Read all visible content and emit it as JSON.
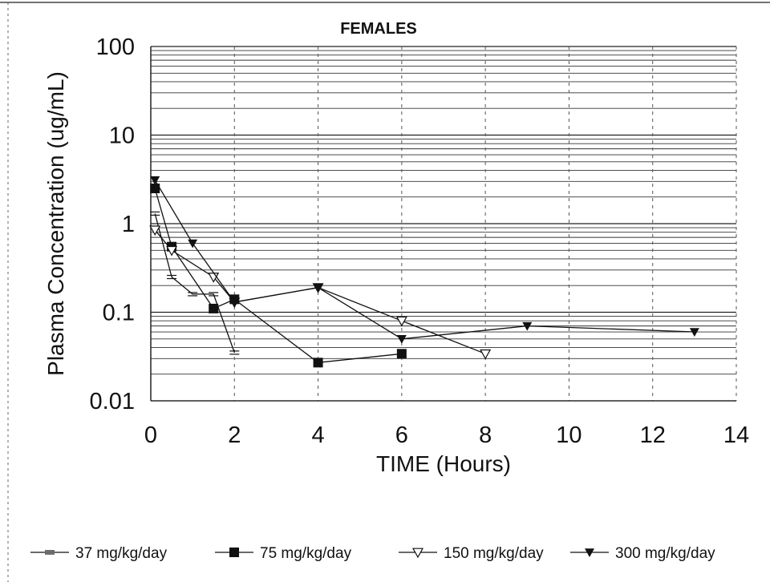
{
  "chart_data": {
    "type": "line",
    "title": "FEMALES",
    "xlabel": "TIME (Hours)",
    "ylabel": "Plasma Concentration (ug/mL)",
    "xlim": [
      0,
      14
    ],
    "ylim": [
      0.01,
      100
    ],
    "yscale": "log",
    "grid": true,
    "legend_position": "bottom",
    "x_ticks": [
      "0",
      "2",
      "4",
      "6",
      "8",
      "10",
      "12",
      "14"
    ],
    "y_ticks": [
      "0.01",
      "0.1",
      "1",
      "10",
      "100"
    ],
    "series": [
      {
        "name": "37 mg/kg/day",
        "marker": "minus",
        "points": [
          [
            0.1,
            1.3
          ],
          [
            0.5,
            0.25
          ],
          [
            1.0,
            0.16
          ],
          [
            1.5,
            0.16
          ],
          [
            2.0,
            0.035
          ]
        ]
      },
      {
        "name": "75 mg/kg/day",
        "marker": "square-filled",
        "points": [
          [
            0.1,
            2.5
          ],
          [
            0.5,
            0.55
          ],
          [
            1.5,
            0.11
          ],
          [
            2.0,
            0.14
          ],
          [
            4.0,
            0.027
          ],
          [
            6.0,
            0.034
          ]
        ]
      },
      {
        "name": "150 mg/kg/day",
        "marker": "triangle-down-open",
        "points": [
          [
            0.1,
            0.85
          ],
          [
            0.5,
            0.5
          ],
          [
            1.5,
            0.25
          ],
          [
            2.0,
            0.13
          ],
          [
            4.0,
            0.19
          ],
          [
            6.0,
            0.08
          ],
          [
            8.0,
            0.034
          ]
        ]
      },
      {
        "name": "300 mg/kg/day",
        "marker": "triangle-down-filled",
        "points": [
          [
            0.1,
            3.1
          ],
          [
            1.0,
            0.6
          ],
          [
            2.0,
            0.13
          ],
          [
            4.0,
            0.19
          ],
          [
            6.0,
            0.05
          ],
          [
            9.0,
            0.07
          ],
          [
            13.0,
            0.06
          ]
        ]
      }
    ]
  }
}
